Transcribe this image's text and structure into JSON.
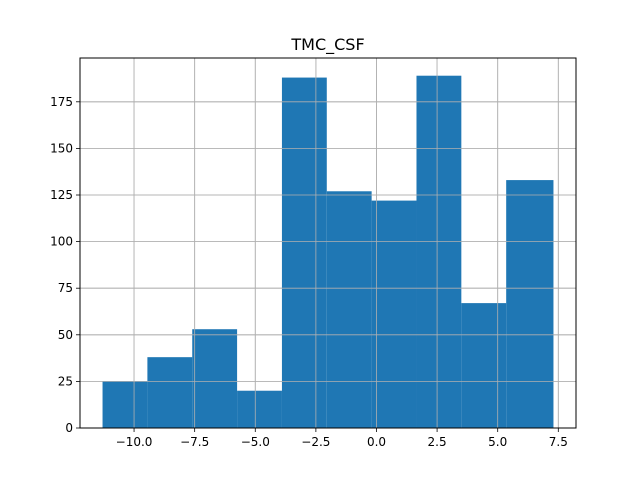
{
  "chart_data": {
    "type": "bar",
    "title": "TMC_CSF",
    "xlabel": "",
    "ylabel": "",
    "grid": true,
    "bar_color": "#1f77b4",
    "bins": [
      {
        "x0": -11.3,
        "x1": -9.45,
        "count": 25
      },
      {
        "x0": -9.45,
        "x1": -7.6,
        "count": 38
      },
      {
        "x0": -7.6,
        "x1": -5.75,
        "count": 53
      },
      {
        "x0": -5.75,
        "x1": -3.9,
        "count": 20
      },
      {
        "x0": -3.9,
        "x1": -2.05,
        "count": 188
      },
      {
        "x0": -2.05,
        "x1": -0.2,
        "count": 127
      },
      {
        "x0": -0.2,
        "x1": 1.65,
        "count": 122
      },
      {
        "x0": 1.65,
        "x1": 3.5,
        "count": 189
      },
      {
        "x0": 3.5,
        "x1": 5.35,
        "count": 67
      },
      {
        "x0": 5.35,
        "x1": 7.3,
        "count": 133
      }
    ],
    "xlim": [
      -12.23,
      8.23
    ],
    "ylim": [
      0,
      198.5
    ],
    "xticks": [
      {
        "value": -10.0,
        "label": "−10.0"
      },
      {
        "value": -7.5,
        "label": "−7.5"
      },
      {
        "value": -5.0,
        "label": "−5.0"
      },
      {
        "value": -2.5,
        "label": "−2.5"
      },
      {
        "value": 0.0,
        "label": "0.0"
      },
      {
        "value": 2.5,
        "label": "2.5"
      },
      {
        "value": 5.0,
        "label": "5.0"
      },
      {
        "value": 7.5,
        "label": "7.5"
      }
    ],
    "yticks": [
      {
        "value": 0,
        "label": "0"
      },
      {
        "value": 25,
        "label": "25"
      },
      {
        "value": 50,
        "label": "50"
      },
      {
        "value": 75,
        "label": "75"
      },
      {
        "value": 100,
        "label": "100"
      },
      {
        "value": 125,
        "label": "125"
      },
      {
        "value": 150,
        "label": "150"
      },
      {
        "value": 175,
        "label": "175"
      }
    ]
  }
}
